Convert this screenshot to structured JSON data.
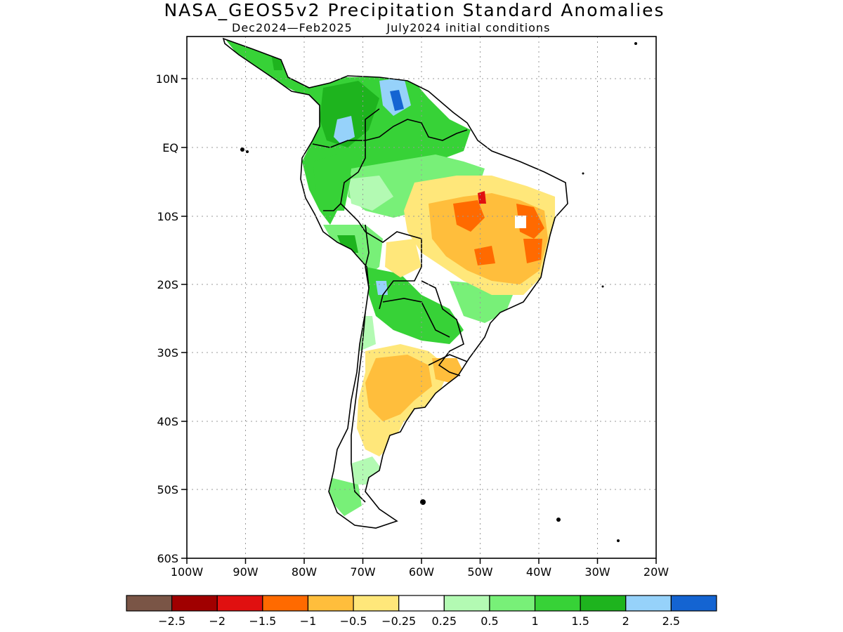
{
  "title": "NASA_GEOS5v2 Precipitation Standard Anomalies",
  "subtitle_period": "Dec2024—Feb2025",
  "subtitle_init": "July2024 initial conditions",
  "lat_labels": [
    "10N",
    "EQ",
    "10S",
    "20S",
    "30S",
    "40S",
    "50S",
    "60S"
  ],
  "lon_labels": [
    "100W",
    "90W",
    "80W",
    "70W",
    "60W",
    "50W",
    "40W",
    "30W",
    "20W"
  ],
  "colorbar": {
    "colors": [
      "#7a5546",
      "#a00000",
      "#e01010",
      "#ff6a00",
      "#ffbe3c",
      "#ffe77a",
      "#ffffff",
      "#b3fab3",
      "#78f078",
      "#37d237",
      "#1eb41e",
      "#96d2fa",
      "#1464d2"
    ],
    "labels": [
      "−2.5",
      "−2",
      "−1.5",
      "−1",
      "−0.5",
      "−0.25",
      "0.25",
      "0.5",
      "1",
      "1.5",
      "2",
      "2.5"
    ]
  }
}
